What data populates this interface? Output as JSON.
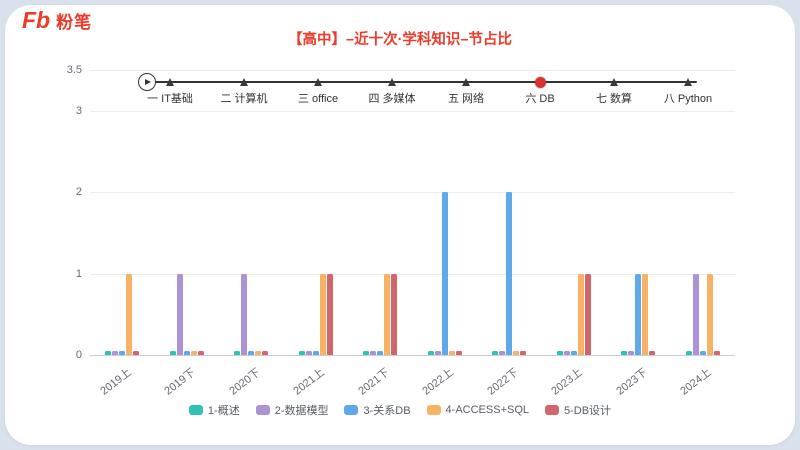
{
  "header": {
    "logo_mark": "Fb",
    "logo_text": "粉笔",
    "title": "【高中】–近十次·学科知识–节占比",
    "brand_color": "#ed3b2a"
  },
  "timeline": {
    "steps": [
      "一 IT基础",
      "二 计算机",
      "三 office",
      "四 多媒体",
      "五 网络",
      "六 DB",
      "七 数算",
      "八 Python"
    ],
    "active_index": 5,
    "active_color": "#d5332b"
  },
  "chart_data": {
    "type": "bar",
    "title": "【高中】–近十次·学科知识–节占比",
    "xlabel": "",
    "ylabel": "",
    "ylim": [
      0,
      3.5
    ],
    "y_ticks": [
      0,
      1,
      2,
      3,
      3.5
    ],
    "grid": true,
    "legend_position": "bottom",
    "categories": [
      "2019上",
      "2019下",
      "2020下",
      "2021上",
      "2021下",
      "2022上",
      "2022下",
      "2023上",
      "2023下",
      "2024上"
    ],
    "series": [
      {
        "name": "1-概述",
        "color": "#2fc1b4",
        "values": [
          0.05,
          0.05,
          0.05,
          0.05,
          0.05,
          0.05,
          0.05,
          0.05,
          0.05,
          0.05
        ]
      },
      {
        "name": "2-数据模型",
        "color": "#ab93d6",
        "values": [
          0.05,
          1,
          1,
          0.05,
          0.05,
          0.05,
          0.05,
          0.05,
          0.05,
          1
        ]
      },
      {
        "name": "3-关系DB",
        "color": "#5fa9ea",
        "values": [
          0.05,
          0.05,
          0.05,
          0.05,
          0.05,
          2,
          2,
          0.05,
          1,
          0.05
        ]
      },
      {
        "name": "4-ACCESS+SQL",
        "color": "#f8b266",
        "values": [
          1,
          0.05,
          0.05,
          1,
          1,
          0.05,
          0.05,
          1,
          1,
          1
        ]
      },
      {
        "name": "5-DB设计",
        "color": "#d5656d",
        "values": [
          0.05,
          0.05,
          0.05,
          1,
          1,
          0.05,
          0.05,
          1,
          0.05,
          0.05
        ]
      }
    ]
  }
}
